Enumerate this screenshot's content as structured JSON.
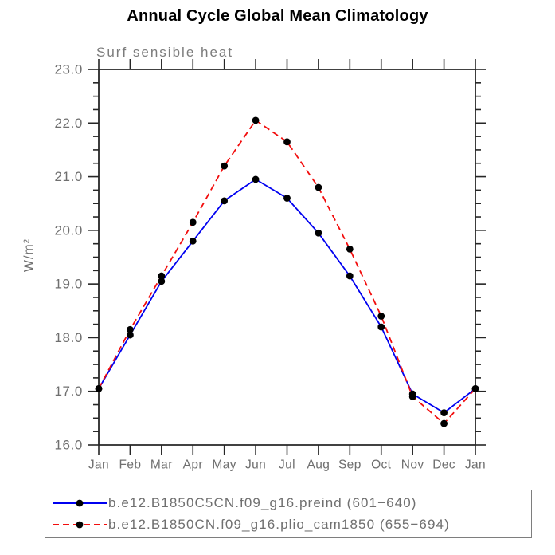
{
  "title": "Annual Cycle Global Mean Climatology",
  "chart_data": {
    "type": "line",
    "title": "Annual Cycle Global Mean Climatology",
    "subtitle": "Surf sensible heat",
    "ylabel": "W/m²",
    "xlabel": "",
    "categories": [
      "Jan",
      "Feb",
      "Mar",
      "Apr",
      "May",
      "Jun",
      "Jul",
      "Aug",
      "Sep",
      "Oct",
      "Nov",
      "Dec",
      "Jan"
    ],
    "series": [
      {
        "name": "b.e12.B1850C5CN.f09_g16.preind (601−640)",
        "color": "#0000f0",
        "line_style": "solid",
        "marker": "filled-circle",
        "marker_color": "#000000",
        "values": [
          17.05,
          18.05,
          19.05,
          19.8,
          20.55,
          20.95,
          20.6,
          19.95,
          19.15,
          18.2,
          16.95,
          16.6,
          17.05
        ]
      },
      {
        "name": "b.e12.B1850CN.f09_g16.plio_cam1850 (655−694)",
        "color": "#f20d0d",
        "line_style": "dashed",
        "marker": "filled-circle",
        "marker_color": "#000000",
        "values": [
          17.05,
          18.15,
          19.15,
          20.15,
          21.2,
          22.05,
          21.65,
          20.8,
          19.65,
          18.4,
          16.9,
          16.4,
          17.05
        ]
      }
    ],
    "ylim": [
      16.0,
      23.0
    ],
    "ytick_step": 1.0,
    "yminor_step": 0.25,
    "ytick_format_decimals": 1,
    "grid": false,
    "legend_position": "bottom",
    "axis_color": "#262626",
    "label_color": "#6f6f6f"
  }
}
